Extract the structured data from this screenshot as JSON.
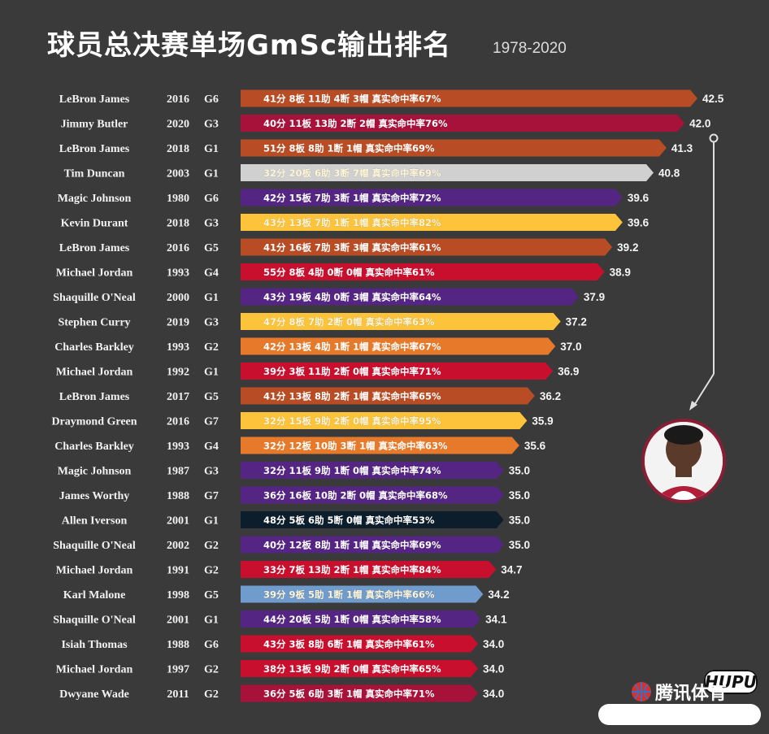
{
  "header": {
    "title": "球员总决赛单场GmSc输出排名",
    "subtitle": "1978-2020"
  },
  "brand": {
    "name": "腾讯体育",
    "watermark": "HUPU"
  },
  "colors": {
    "LAL": "#ffc72c",
    "CLE": "#b84c25",
    "MIA": "#a6123a",
    "SAS": "#c4ced4",
    "LAL_PURPLE": "#552583",
    "GSW": "#fdc33b",
    "CHI": "#c8102e",
    "PHO": "#e7792b",
    "PHI": "#0c1e2c",
    "UTA": "#6f9bcd",
    "DET": "#c8102e"
  },
  "chart_data": {
    "type": "bar",
    "title": "球员总决赛单场GmSc输出排名",
    "subtitle": "1978-2020",
    "xlim": [
      0,
      42.5
    ],
    "rows": [
      {
        "player": "LeBron James",
        "year": "2016",
        "game": "G6",
        "stats": "41分 8板 11助 4断 3帽  真实命中率67%",
        "value": 42.5,
        "color": "#b84c25"
      },
      {
        "player": "Jimmy Butler",
        "year": "2020",
        "game": "G3",
        "stats": "40分 11板 13助 2断 2帽  真实命中率76%",
        "value": 42.0,
        "color": "#a6123a"
      },
      {
        "player": "LeBron James",
        "year": "2018",
        "game": "G1",
        "stats": "51分 8板 8助 1断 1帽  真实命中率69%",
        "value": 41.3,
        "color": "#b84c25"
      },
      {
        "player": "Tim Duncan",
        "year": "2003",
        "game": "G1",
        "stats": "32分 20板 6助 3断 7帽  真实命中率69%",
        "value": 40.8,
        "color": "#d0d0d0"
      },
      {
        "player": "Magic Johnson",
        "year": "1980",
        "game": "G6",
        "stats": "42分 15板 7助 3断 1帽  真实命中率72%",
        "value": 39.6,
        "color": "#552583"
      },
      {
        "player": "Kevin Durant",
        "year": "2018",
        "game": "G3",
        "stats": "43分 13板 7助 1断 1帽  真实命中率82%",
        "value": 39.6,
        "color": "#fdc33b"
      },
      {
        "player": "LeBron James",
        "year": "2016",
        "game": "G5",
        "stats": "41分 16板 7助 3断 3帽  真实命中率61%",
        "value": 39.2,
        "color": "#b84c25"
      },
      {
        "player": "Michael Jordan",
        "year": "1993",
        "game": "G4",
        "stats": "55分 8板 4助 0断 0帽  真实命中率61%",
        "value": 38.9,
        "color": "#c8102e"
      },
      {
        "player": "Shaquille O'Neal",
        "year": "2000",
        "game": "G1",
        "stats": "43分 19板 4助 0断 3帽  真实命中率64%",
        "value": 37.9,
        "color": "#552583"
      },
      {
        "player": "Stephen Curry",
        "year": "2019",
        "game": "G3",
        "stats": "47分 8板 7助 2断 0帽  真实命中率63%",
        "value": 37.2,
        "color": "#fdc33b"
      },
      {
        "player": "Charles Barkley",
        "year": "1993",
        "game": "G2",
        "stats": "42分 13板 4助 1断 1帽  真实命中率67%",
        "value": 37.0,
        "color": "#e7792b"
      },
      {
        "player": "Michael Jordan",
        "year": "1992",
        "game": "G1",
        "stats": "39分 3板 11助 2断 0帽  真实命中率71%",
        "value": 36.9,
        "color": "#c8102e"
      },
      {
        "player": "LeBron James",
        "year": "2017",
        "game": "G5",
        "stats": "41分 13板 8助 2断 1帽  真实命中率65%",
        "value": 36.2,
        "color": "#b84c25"
      },
      {
        "player": "Draymond Green",
        "year": "2016",
        "game": "G7",
        "stats": "32分 15板 9助 2断 0帽  真实命中率95%",
        "value": 35.9,
        "color": "#fdc33b"
      },
      {
        "player": "Charles Barkley",
        "year": "1993",
        "game": "G4",
        "stats": "32分 12板 10助 3断 1帽  真实命中率63%",
        "value": 35.6,
        "color": "#e7792b"
      },
      {
        "player": "Magic Johnson",
        "year": "1987",
        "game": "G3",
        "stats": "32分 11板 9助 1断 0帽  真实命中率74%",
        "value": 35.0,
        "color": "#552583"
      },
      {
        "player": "James Worthy",
        "year": "1988",
        "game": "G7",
        "stats": "36分 16板 10助 2断 0帽  真实命中率68%",
        "value": 35.0,
        "color": "#552583"
      },
      {
        "player": "Allen Iverson",
        "year": "2001",
        "game": "G1",
        "stats": "48分 5板 6助 5断 0帽  真实命中率53%",
        "value": 35.0,
        "color": "#0c1e2c"
      },
      {
        "player": "Shaquille O'Neal",
        "year": "2002",
        "game": "G2",
        "stats": "40分 12板 8助 1断 1帽  真实命中率69%",
        "value": 35.0,
        "color": "#552583"
      },
      {
        "player": "Michael Jordan",
        "year": "1991",
        "game": "G2",
        "stats": "33分 7板 13助 2断 1帽  真实命中率84%",
        "value": 34.7,
        "color": "#c8102e"
      },
      {
        "player": "Karl Malone",
        "year": "1998",
        "game": "G5",
        "stats": "39分 9板 5助 1断 1帽  真实命中率66%",
        "value": 34.2,
        "color": "#6f9bcd"
      },
      {
        "player": "Shaquille O'Neal",
        "year": "2001",
        "game": "G1",
        "stats": "44分 20板 5助 1断 0帽  真实命中率58%",
        "value": 34.1,
        "color": "#552583"
      },
      {
        "player": "Isiah Thomas",
        "year": "1988",
        "game": "G6",
        "stats": "43分 3板 8助 6断 1帽  真实命中率61%",
        "value": 34.0,
        "color": "#c8102e"
      },
      {
        "player": "Michael Jordan",
        "year": "1997",
        "game": "G2",
        "stats": "38分 13板 9助 2断 0帽  真实命中率65%",
        "value": 34.0,
        "color": "#c8102e"
      },
      {
        "player": "Dwyane Wade",
        "year": "2011",
        "game": "G2",
        "stats": "36分 5板 6助 3断 1帽  真实命中率71%",
        "value": 34.0,
        "color": "#a6123a"
      }
    ]
  }
}
